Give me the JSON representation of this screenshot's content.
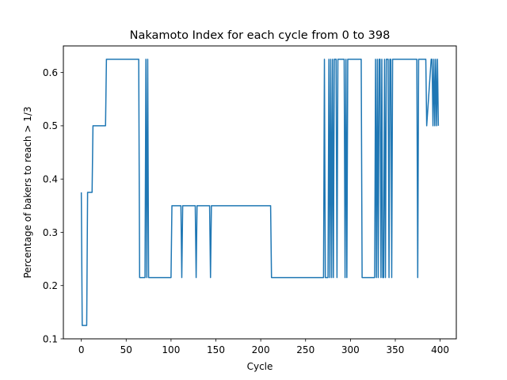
{
  "chart_data": {
    "type": "line",
    "title": "Nakamoto Index for each cycle from 0 to 398",
    "xlabel": "Cycle",
    "ylabel": "Percentage of bakers to reach > 1/3",
    "xlim": [
      -20,
      418
    ],
    "ylim": [
      0.1,
      0.65
    ],
    "xticks": [
      0,
      50,
      100,
      150,
      200,
      250,
      300,
      350,
      400
    ],
    "yticks": [
      0.1,
      0.2,
      0.3,
      0.4,
      0.5,
      0.6
    ],
    "xtick_labels": [
      "0",
      "50",
      "100",
      "150",
      "200",
      "250",
      "300",
      "350",
      "400"
    ],
    "ytick_labels": [
      "0.1",
      "0.2",
      "0.3",
      "0.4",
      "0.5",
      "0.6"
    ],
    "grid": false,
    "series_color": "#1f77b4",
    "series": [
      {
        "x": [
          0,
          1,
          2,
          6,
          7,
          12,
          13,
          27,
          28,
          64,
          65,
          71,
          72,
          73,
          74,
          75,
          76,
          100,
          101,
          111,
          112,
          113,
          114,
          127,
          128,
          129,
          130,
          143,
          144,
          145,
          146,
          211,
          212,
          270,
          271,
          272,
          273,
          275,
          276,
          277,
          278,
          279,
          280,
          281,
          282,
          283,
          284,
          285,
          286,
          289,
          290,
          291,
          292,
          293,
          294,
          295,
          296,
          297,
          298,
          299,
          312,
          313,
          327,
          328,
          329,
          330,
          331,
          332,
          333,
          334,
          335,
          336,
          337,
          338,
          339,
          340,
          341,
          342,
          343,
          344,
          345,
          346,
          347,
          348,
          373,
          374,
          375,
          376,
          383,
          384,
          385,
          390,
          391,
          392,
          393,
          394,
          395,
          396,
          397,
          398
        ],
        "y": [
          0.375,
          0.125,
          0.125,
          0.125,
          0.375,
          0.375,
          0.5,
          0.5,
          0.625,
          0.625,
          0.215,
          0.215,
          0.625,
          0.215,
          0.625,
          0.215,
          0.215,
          0.215,
          0.35,
          0.35,
          0.215,
          0.35,
          0.35,
          0.35,
          0.215,
          0.35,
          0.35,
          0.35,
          0.215,
          0.35,
          0.35,
          0.35,
          0.215,
          0.215,
          0.625,
          0.215,
          0.215,
          0.215,
          0.625,
          0.215,
          0.625,
          0.215,
          0.625,
          0.215,
          0.625,
          0.625,
          0.625,
          0.215,
          0.625,
          0.625,
          0.625,
          0.625,
          0.625,
          0.625,
          0.215,
          0.625,
          0.215,
          0.625,
          0.625,
          0.625,
          0.625,
          0.215,
          0.215,
          0.625,
          0.215,
          0.625,
          0.215,
          0.625,
          0.625,
          0.215,
          0.625,
          0.215,
          0.215,
          0.625,
          0.215,
          0.625,
          0.625,
          0.625,
          0.215,
          0.625,
          0.625,
          0.215,
          0.625,
          0.625,
          0.625,
          0.625,
          0.215,
          0.625,
          0.625,
          0.625,
          0.5,
          0.625,
          0.625,
          0.5,
          0.625,
          0.5,
          0.625,
          0.5,
          0.625,
          0.5
        ]
      }
    ]
  }
}
